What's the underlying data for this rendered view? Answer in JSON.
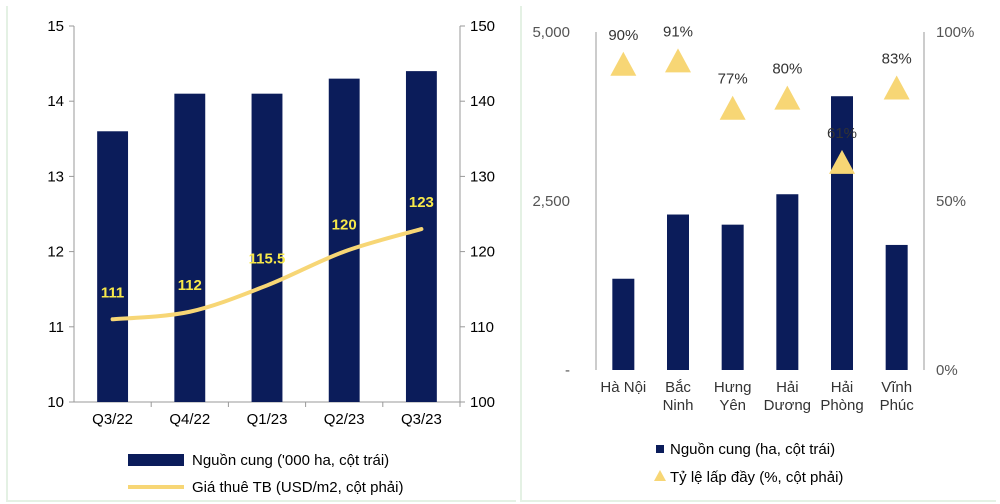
{
  "colors": {
    "navy": "#0b1c5a",
    "gold": "#f7d675",
    "axis": "#999999"
  },
  "chart_data": [
    {
      "type": "bar",
      "categories": [
        "Q3/22",
        "Q4/22",
        "Q1/23",
        "Q2/23",
        "Q3/23"
      ],
      "series": [
        {
          "name": "Nguồn cung ('000 ha, cột trái)",
          "type": "bar",
          "axis": "left",
          "values": [
            13.6,
            14.1,
            14.1,
            14.3,
            14.4
          ]
        },
        {
          "name": "Giá thuê TB (USD/m2, cột phải)",
          "type": "line",
          "axis": "right",
          "values": [
            111,
            112,
            115.5,
            120,
            123
          ],
          "labels": [
            "111",
            "112",
            "115.5",
            "120",
            "123"
          ]
        }
      ],
      "yleft": {
        "lim": [
          10,
          15
        ],
        "ticks": [
          "10",
          "11",
          "12",
          "13",
          "14",
          "15"
        ]
      },
      "yright": {
        "lim": [
          100,
          150
        ],
        "ticks": [
          "100",
          "110",
          "120",
          "130",
          "140",
          "150"
        ]
      },
      "legend": "bottom"
    },
    {
      "type": "bar",
      "categories": [
        [
          "Hà Nội"
        ],
        [
          "Bắc",
          "Ninh"
        ],
        [
          "Hưng",
          "Yên"
        ],
        [
          "Hải",
          "Dương"
        ],
        [
          "Hải",
          "Phòng"
        ],
        [
          "Vĩnh",
          "Phúc"
        ]
      ],
      "series": [
        {
          "name": "Nguồn cung (ha, cột trái)",
          "type": "bar",
          "axis": "left",
          "values": [
            1350,
            2300,
            2150,
            2600,
            4050,
            1850
          ]
        },
        {
          "name": "Tỷ lệ lấp đầy (%, cột phải)",
          "type": "scatter",
          "marker": "triangle",
          "axis": "right",
          "values": [
            90,
            91,
            77,
            80,
            61,
            83
          ],
          "labels": [
            "90%",
            "91%",
            "77%",
            "80%",
            "61%",
            "83%"
          ]
        }
      ],
      "yleft": {
        "lim": [
          0,
          5000
        ],
        "ticks": [
          "-",
          "2,500",
          "5,000"
        ]
      },
      "yright": {
        "lim": [
          0,
          100
        ],
        "ticks": [
          "0%",
          "50%",
          "100%"
        ]
      },
      "legend": "bottom"
    }
  ]
}
